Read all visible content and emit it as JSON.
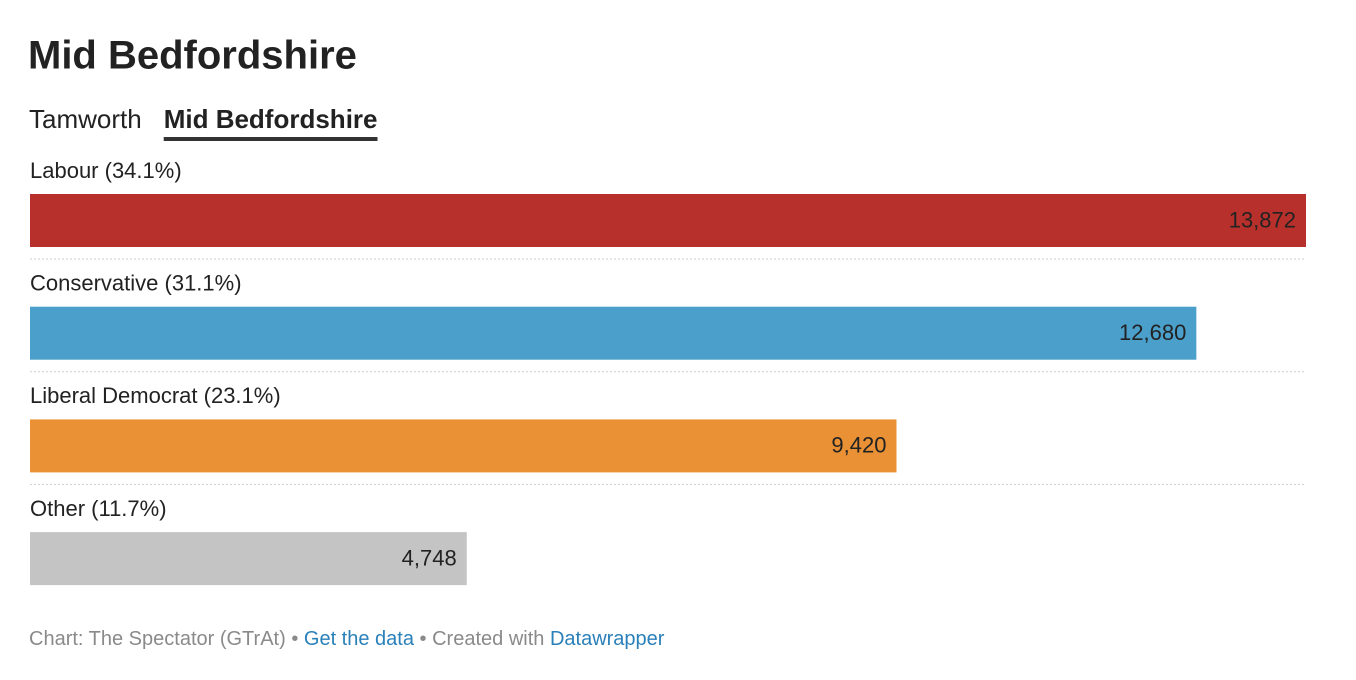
{
  "chart_data": {
    "type": "bar",
    "title": "Mid Bedfordshire",
    "tabs": [
      "Tamworth",
      "Mid Bedfordshire"
    ],
    "active_tab": 1,
    "categories": [
      "Labour (34.1%)",
      "Conservative (31.1%)",
      "Liberal Democrat (23.1%)",
      "Other (11.7%)"
    ],
    "values": [
      13872,
      12680,
      9420,
      4748
    ],
    "value_labels": [
      "13,872",
      "12,680",
      "9,420",
      "4,748"
    ],
    "colors": [
      "#b8302b",
      "#4a9fcb",
      "#ea9136",
      "#c4c4c4"
    ],
    "label_colors": [
      "#ffffff",
      "#ffffff",
      "#ffffff",
      "#333333"
    ],
    "xlim": [
      0,
      13872
    ],
    "footer": {
      "source": "Chart: The Spectator (GTrAt)",
      "separator": "•",
      "get_data": "Get the data",
      "created": "Created with",
      "tool": "Datawrapper"
    }
  }
}
